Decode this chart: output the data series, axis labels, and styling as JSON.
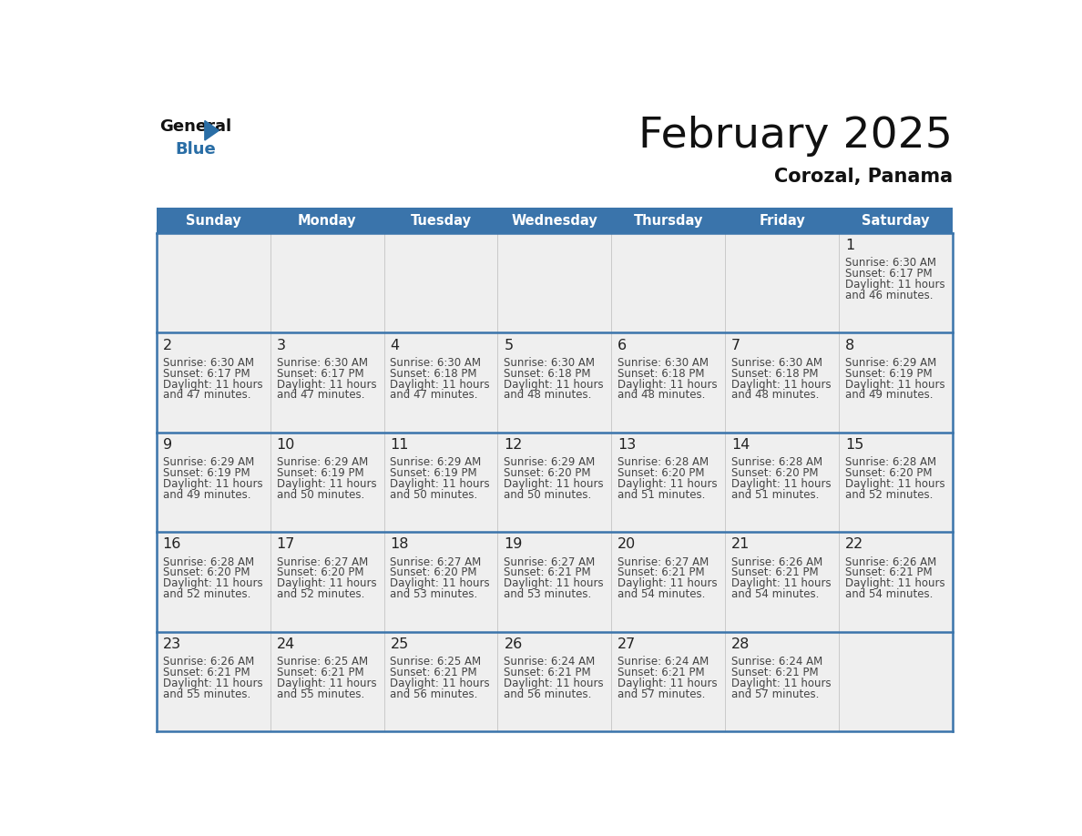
{
  "title": "February 2025",
  "subtitle": "Corozal, Panama",
  "header_color": "#3a74ab",
  "header_text_color": "#ffffff",
  "day_names": [
    "Sunday",
    "Monday",
    "Tuesday",
    "Wednesday",
    "Thursday",
    "Friday",
    "Saturday"
  ],
  "days": [
    {
      "day": 1,
      "col": 6,
      "row": 0,
      "sunrise": "6:30 AM",
      "sunset": "6:17 PM",
      "daylight_hours": 11,
      "daylight_minutes": 46
    },
    {
      "day": 2,
      "col": 0,
      "row": 1,
      "sunrise": "6:30 AM",
      "sunset": "6:17 PM",
      "daylight_hours": 11,
      "daylight_minutes": 47
    },
    {
      "day": 3,
      "col": 1,
      "row": 1,
      "sunrise": "6:30 AM",
      "sunset": "6:17 PM",
      "daylight_hours": 11,
      "daylight_minutes": 47
    },
    {
      "day": 4,
      "col": 2,
      "row": 1,
      "sunrise": "6:30 AM",
      "sunset": "6:18 PM",
      "daylight_hours": 11,
      "daylight_minutes": 47
    },
    {
      "day": 5,
      "col": 3,
      "row": 1,
      "sunrise": "6:30 AM",
      "sunset": "6:18 PM",
      "daylight_hours": 11,
      "daylight_minutes": 48
    },
    {
      "day": 6,
      "col": 4,
      "row": 1,
      "sunrise": "6:30 AM",
      "sunset": "6:18 PM",
      "daylight_hours": 11,
      "daylight_minutes": 48
    },
    {
      "day": 7,
      "col": 5,
      "row": 1,
      "sunrise": "6:30 AM",
      "sunset": "6:18 PM",
      "daylight_hours": 11,
      "daylight_minutes": 48
    },
    {
      "day": 8,
      "col": 6,
      "row": 1,
      "sunrise": "6:29 AM",
      "sunset": "6:19 PM",
      "daylight_hours": 11,
      "daylight_minutes": 49
    },
    {
      "day": 9,
      "col": 0,
      "row": 2,
      "sunrise": "6:29 AM",
      "sunset": "6:19 PM",
      "daylight_hours": 11,
      "daylight_minutes": 49
    },
    {
      "day": 10,
      "col": 1,
      "row": 2,
      "sunrise": "6:29 AM",
      "sunset": "6:19 PM",
      "daylight_hours": 11,
      "daylight_minutes": 50
    },
    {
      "day": 11,
      "col": 2,
      "row": 2,
      "sunrise": "6:29 AM",
      "sunset": "6:19 PM",
      "daylight_hours": 11,
      "daylight_minutes": 50
    },
    {
      "day": 12,
      "col": 3,
      "row": 2,
      "sunrise": "6:29 AM",
      "sunset": "6:20 PM",
      "daylight_hours": 11,
      "daylight_minutes": 50
    },
    {
      "day": 13,
      "col": 4,
      "row": 2,
      "sunrise": "6:28 AM",
      "sunset": "6:20 PM",
      "daylight_hours": 11,
      "daylight_minutes": 51
    },
    {
      "day": 14,
      "col": 5,
      "row": 2,
      "sunrise": "6:28 AM",
      "sunset": "6:20 PM",
      "daylight_hours": 11,
      "daylight_minutes": 51
    },
    {
      "day": 15,
      "col": 6,
      "row": 2,
      "sunrise": "6:28 AM",
      "sunset": "6:20 PM",
      "daylight_hours": 11,
      "daylight_minutes": 52
    },
    {
      "day": 16,
      "col": 0,
      "row": 3,
      "sunrise": "6:28 AM",
      "sunset": "6:20 PM",
      "daylight_hours": 11,
      "daylight_minutes": 52
    },
    {
      "day": 17,
      "col": 1,
      "row": 3,
      "sunrise": "6:27 AM",
      "sunset": "6:20 PM",
      "daylight_hours": 11,
      "daylight_minutes": 52
    },
    {
      "day": 18,
      "col": 2,
      "row": 3,
      "sunrise": "6:27 AM",
      "sunset": "6:20 PM",
      "daylight_hours": 11,
      "daylight_minutes": 53
    },
    {
      "day": 19,
      "col": 3,
      "row": 3,
      "sunrise": "6:27 AM",
      "sunset": "6:21 PM",
      "daylight_hours": 11,
      "daylight_minutes": 53
    },
    {
      "day": 20,
      "col": 4,
      "row": 3,
      "sunrise": "6:27 AM",
      "sunset": "6:21 PM",
      "daylight_hours": 11,
      "daylight_minutes": 54
    },
    {
      "day": 21,
      "col": 5,
      "row": 3,
      "sunrise": "6:26 AM",
      "sunset": "6:21 PM",
      "daylight_hours": 11,
      "daylight_minutes": 54
    },
    {
      "day": 22,
      "col": 6,
      "row": 3,
      "sunrise": "6:26 AM",
      "sunset": "6:21 PM",
      "daylight_hours": 11,
      "daylight_minutes": 54
    },
    {
      "day": 23,
      "col": 0,
      "row": 4,
      "sunrise": "6:26 AM",
      "sunset": "6:21 PM",
      "daylight_hours": 11,
      "daylight_minutes": 55
    },
    {
      "day": 24,
      "col": 1,
      "row": 4,
      "sunrise": "6:25 AM",
      "sunset": "6:21 PM",
      "daylight_hours": 11,
      "daylight_minutes": 55
    },
    {
      "day": 25,
      "col": 2,
      "row": 4,
      "sunrise": "6:25 AM",
      "sunset": "6:21 PM",
      "daylight_hours": 11,
      "daylight_minutes": 56
    },
    {
      "day": 26,
      "col": 3,
      "row": 4,
      "sunrise": "6:24 AM",
      "sunset": "6:21 PM",
      "daylight_hours": 11,
      "daylight_minutes": 56
    },
    {
      "day": 27,
      "col": 4,
      "row": 4,
      "sunrise": "6:24 AM",
      "sunset": "6:21 PM",
      "daylight_hours": 11,
      "daylight_minutes": 57
    },
    {
      "day": 28,
      "col": 5,
      "row": 4,
      "sunrise": "6:24 AM",
      "sunset": "6:21 PM",
      "daylight_hours": 11,
      "daylight_minutes": 57
    }
  ],
  "num_rows": 5,
  "num_cols": 7,
  "logo_triangle_color": "#2a6ea6",
  "line_color": "#3a74ab",
  "cell_text_color": "#444444",
  "day_number_color": "#222222",
  "cell_bg": "#efefef",
  "cell_bg_white": "#ffffff"
}
